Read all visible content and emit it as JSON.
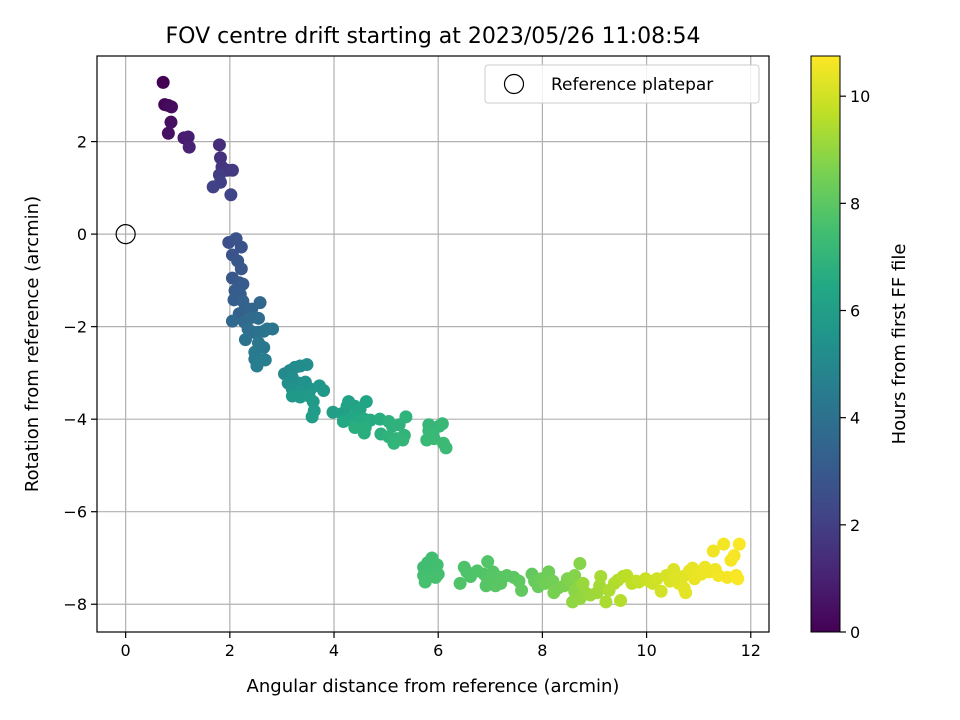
{
  "chart_data": {
    "type": "scatter",
    "title": "FOV centre drift starting at 2023/05/26 11:08:54",
    "xlabel": "Angular distance from reference (arcmin)",
    "ylabel": "Rotation from reference (arcmin)",
    "xlim": [
      -0.55,
      12.35
    ],
    "ylim": [
      -8.6,
      3.85
    ],
    "xticks": [
      0,
      2,
      4,
      6,
      8,
      10,
      12
    ],
    "yticks": [
      -8,
      -6,
      -4,
      -2,
      0,
      2
    ],
    "x_tick_labels": [
      "0",
      "2",
      "4",
      "6",
      "8",
      "10",
      "12"
    ],
    "y_tick_labels": [
      "−8",
      "−6",
      "−4",
      "−2",
      "0",
      "2"
    ],
    "grid": true,
    "legend": {
      "placement": "top-right",
      "entries": [
        {
          "label": "Reference platepar",
          "marker": "open-circle"
        }
      ]
    },
    "reference_point": {
      "x": 0,
      "y": 0
    },
    "colorbar": {
      "label": "Hours from first FF file",
      "colormap": "viridis",
      "range": [
        0,
        10.75
      ],
      "ticks": [
        0,
        2,
        4,
        6,
        8,
        10
      ],
      "tick_labels": [
        "0",
        "2",
        "4",
        "6",
        "8",
        "10"
      ]
    },
    "points": [
      {
        "x": 0.72,
        "y": 3.28,
        "t": 0.0
      },
      {
        "x": 0.75,
        "y": 2.8,
        "t": 0.1
      },
      {
        "x": 0.82,
        "y": 2.78,
        "t": 0.2
      },
      {
        "x": 0.88,
        "y": 2.75,
        "t": 0.3
      },
      {
        "x": 0.87,
        "y": 2.42,
        "t": 0.4
      },
      {
        "x": 0.82,
        "y": 2.18,
        "t": 0.5
      },
      {
        "x": 1.12,
        "y": 2.08,
        "t": 0.8
      },
      {
        "x": 1.2,
        "y": 2.1,
        "t": 0.9
      },
      {
        "x": 1.22,
        "y": 1.88,
        "t": 1.0
      },
      {
        "x": 1.8,
        "y": 1.93,
        "t": 1.4
      },
      {
        "x": 1.82,
        "y": 1.65,
        "t": 1.5
      },
      {
        "x": 1.85,
        "y": 1.45,
        "t": 1.6
      },
      {
        "x": 1.95,
        "y": 1.38,
        "t": 1.7
      },
      {
        "x": 2.05,
        "y": 1.38,
        "t": 1.8
      },
      {
        "x": 1.8,
        "y": 1.28,
        "t": 1.9
      },
      {
        "x": 1.82,
        "y": 1.12,
        "t": 2.0
      },
      {
        "x": 1.68,
        "y": 1.02,
        "t": 2.1
      },
      {
        "x": 2.02,
        "y": 0.85,
        "t": 2.2
      },
      {
        "x": 1.98,
        "y": -0.18,
        "t": 2.6
      },
      {
        "x": 2.12,
        "y": -0.1,
        "t": 2.7
      },
      {
        "x": 2.22,
        "y": -0.28,
        "t": 2.75
      },
      {
        "x": 2.05,
        "y": -0.45,
        "t": 2.8
      },
      {
        "x": 2.15,
        "y": -0.58,
        "t": 2.85
      },
      {
        "x": 2.22,
        "y": -0.75,
        "t": 2.9
      },
      {
        "x": 2.05,
        "y": -0.95,
        "t": 2.95
      },
      {
        "x": 2.18,
        "y": -1.05,
        "t": 3.0
      },
      {
        "x": 2.25,
        "y": -1.08,
        "t": 3.05
      },
      {
        "x": 2.1,
        "y": -1.22,
        "t": 3.1
      },
      {
        "x": 2.2,
        "y": -1.3,
        "t": 3.15
      },
      {
        "x": 2.08,
        "y": -1.42,
        "t": 3.2
      },
      {
        "x": 2.25,
        "y": -1.45,
        "t": 3.3
      },
      {
        "x": 2.3,
        "y": -1.6,
        "t": 3.35
      },
      {
        "x": 2.18,
        "y": -1.72,
        "t": 3.4
      },
      {
        "x": 2.42,
        "y": -1.62,
        "t": 3.5
      },
      {
        "x": 2.58,
        "y": -1.48,
        "t": 3.55
      },
      {
        "x": 2.05,
        "y": -1.88,
        "t": 3.6
      },
      {
        "x": 2.28,
        "y": -1.9,
        "t": 3.65
      },
      {
        "x": 2.42,
        "y": -1.8,
        "t": 3.7
      },
      {
        "x": 2.55,
        "y": -1.82,
        "t": 3.8
      },
      {
        "x": 2.35,
        "y": -2.05,
        "t": 3.85
      },
      {
        "x": 2.45,
        "y": -2.12,
        "t": 3.9
      },
      {
        "x": 2.55,
        "y": -2.12,
        "t": 4.0
      },
      {
        "x": 2.3,
        "y": -2.28,
        "t": 4.05
      },
      {
        "x": 2.65,
        "y": -2.1,
        "t": 4.1
      },
      {
        "x": 2.72,
        "y": -2.05,
        "t": 4.15
      },
      {
        "x": 2.82,
        "y": -2.05,
        "t": 4.2
      },
      {
        "x": 2.55,
        "y": -2.35,
        "t": 4.25
      },
      {
        "x": 2.65,
        "y": -2.45,
        "t": 4.3
      },
      {
        "x": 2.48,
        "y": -2.55,
        "t": 4.35
      },
      {
        "x": 2.48,
        "y": -2.7,
        "t": 4.4
      },
      {
        "x": 2.58,
        "y": -2.72,
        "t": 4.45
      },
      {
        "x": 2.68,
        "y": -2.72,
        "t": 4.5
      },
      {
        "x": 2.52,
        "y": -2.85,
        "t": 4.55
      },
      {
        "x": 3.05,
        "y": -3.02,
        "t": 5.0
      },
      {
        "x": 3.15,
        "y": -2.95,
        "t": 5.05
      },
      {
        "x": 3.25,
        "y": -2.88,
        "t": 5.1
      },
      {
        "x": 3.35,
        "y": -2.85,
        "t": 5.15
      },
      {
        "x": 3.48,
        "y": -2.82,
        "t": 5.2
      },
      {
        "x": 3.2,
        "y": -3.1,
        "t": 5.25
      },
      {
        "x": 3.12,
        "y": -3.22,
        "t": 5.3
      },
      {
        "x": 3.32,
        "y": -3.22,
        "t": 5.35
      },
      {
        "x": 3.45,
        "y": -3.2,
        "t": 5.4
      },
      {
        "x": 3.2,
        "y": -3.35,
        "t": 5.45
      },
      {
        "x": 3.38,
        "y": -3.38,
        "t": 5.5
      },
      {
        "x": 3.55,
        "y": -3.35,
        "t": 5.55
      },
      {
        "x": 3.72,
        "y": -3.28,
        "t": 5.6
      },
      {
        "x": 3.8,
        "y": -3.38,
        "t": 5.65
      },
      {
        "x": 3.2,
        "y": -3.5,
        "t": 5.7
      },
      {
        "x": 3.35,
        "y": -3.52,
        "t": 5.75
      },
      {
        "x": 3.52,
        "y": -3.5,
        "t": 5.8
      },
      {
        "x": 3.6,
        "y": -3.62,
        "t": 5.85
      },
      {
        "x": 3.62,
        "y": -3.82,
        "t": 5.9
      },
      {
        "x": 3.58,
        "y": -3.95,
        "t": 5.95
      },
      {
        "x": 3.98,
        "y": -3.85,
        "t": 6.0
      },
      {
        "x": 4.15,
        "y": -3.88,
        "t": 6.05
      },
      {
        "x": 4.25,
        "y": -3.72,
        "t": 6.1
      },
      {
        "x": 4.28,
        "y": -3.62,
        "t": 6.15
      },
      {
        "x": 4.4,
        "y": -3.72,
        "t": 6.2
      },
      {
        "x": 4.5,
        "y": -3.78,
        "t": 6.25
      },
      {
        "x": 4.62,
        "y": -3.62,
        "t": 6.3
      },
      {
        "x": 4.32,
        "y": -3.98,
        "t": 6.35
      },
      {
        "x": 4.45,
        "y": -3.98,
        "t": 6.4
      },
      {
        "x": 4.18,
        "y": -4.05,
        "t": 6.45
      },
      {
        "x": 4.38,
        "y": -4.08,
        "t": 6.5
      },
      {
        "x": 4.58,
        "y": -4.0,
        "t": 6.55
      },
      {
        "x": 4.7,
        "y": -4.02,
        "t": 6.6
      },
      {
        "x": 4.88,
        "y": -4.0,
        "t": 6.65
      },
      {
        "x": 4.4,
        "y": -4.18,
        "t": 6.7
      },
      {
        "x": 4.6,
        "y": -4.18,
        "t": 6.72
      },
      {
        "x": 4.58,
        "y": -4.3,
        "t": 6.75
      },
      {
        "x": 4.9,
        "y": -4.32,
        "t": 6.8
      },
      {
        "x": 5.05,
        "y": -4.05,
        "t": 6.82
      },
      {
        "x": 5.12,
        "y": -4.15,
        "t": 6.85
      },
      {
        "x": 5.25,
        "y": -4.12,
        "t": 6.88
      },
      {
        "x": 5.38,
        "y": -3.95,
        "t": 6.9
      },
      {
        "x": 5.05,
        "y": -4.38,
        "t": 6.92
      },
      {
        "x": 5.2,
        "y": -4.42,
        "t": 6.95
      },
      {
        "x": 5.35,
        "y": -4.35,
        "t": 6.97
      },
      {
        "x": 5.15,
        "y": -4.52,
        "t": 7.0
      },
      {
        "x": 5.32,
        "y": -4.45,
        "t": 7.02
      },
      {
        "x": 5.82,
        "y": -4.12,
        "t": 7.1
      },
      {
        "x": 6.02,
        "y": -4.15,
        "t": 7.12
      },
      {
        "x": 6.08,
        "y": -4.1,
        "t": 7.14
      },
      {
        "x": 5.82,
        "y": -4.25,
        "t": 7.16
      },
      {
        "x": 5.9,
        "y": -4.32,
        "t": 7.18
      },
      {
        "x": 5.78,
        "y": -4.45,
        "t": 7.2
      },
      {
        "x": 5.92,
        "y": -4.42,
        "t": 7.22
      },
      {
        "x": 6.1,
        "y": -4.52,
        "t": 7.24
      },
      {
        "x": 6.15,
        "y": -4.62,
        "t": 7.26
      },
      {
        "x": 5.72,
        "y": -7.2,
        "t": 7.4
      },
      {
        "x": 5.88,
        "y": -7.0,
        "t": 7.42
      },
      {
        "x": 5.8,
        "y": -7.1,
        "t": 7.44
      },
      {
        "x": 5.98,
        "y": -7.15,
        "t": 7.46
      },
      {
        "x": 5.85,
        "y": -7.3,
        "t": 7.48
      },
      {
        "x": 6.0,
        "y": -7.35,
        "t": 7.5
      },
      {
        "x": 5.72,
        "y": -7.38,
        "t": 7.52
      },
      {
        "x": 5.75,
        "y": -7.52,
        "t": 7.54
      },
      {
        "x": 5.95,
        "y": -7.42,
        "t": 7.56
      },
      {
        "x": 6.5,
        "y": -7.2,
        "t": 7.7
      },
      {
        "x": 6.55,
        "y": -7.3,
        "t": 7.72
      },
      {
        "x": 6.62,
        "y": -7.4,
        "t": 7.74
      },
      {
        "x": 6.42,
        "y": -7.55,
        "t": 7.76
      },
      {
        "x": 6.75,
        "y": -7.28,
        "t": 7.78
      },
      {
        "x": 6.88,
        "y": -7.35,
        "t": 7.8
      },
      {
        "x": 6.95,
        "y": -7.08,
        "t": 7.82
      },
      {
        "x": 7.05,
        "y": -7.3,
        "t": 7.84
      },
      {
        "x": 6.95,
        "y": -7.5,
        "t": 7.86
      },
      {
        "x": 6.92,
        "y": -7.6,
        "t": 7.88
      },
      {
        "x": 7.1,
        "y": -7.38,
        "t": 7.9
      },
      {
        "x": 7.22,
        "y": -7.42,
        "t": 7.92
      },
      {
        "x": 7.1,
        "y": -7.6,
        "t": 7.94
      },
      {
        "x": 7.2,
        "y": -7.55,
        "t": 7.96
      },
      {
        "x": 7.32,
        "y": -7.38,
        "t": 7.98
      },
      {
        "x": 7.45,
        "y": -7.42,
        "t": 8.0
      },
      {
        "x": 7.55,
        "y": -7.5,
        "t": 8.05
      },
      {
        "x": 7.6,
        "y": -7.7,
        "t": 8.1
      },
      {
        "x": 7.8,
        "y": -7.35,
        "t": 8.15
      },
      {
        "x": 7.85,
        "y": -7.5,
        "t": 8.2
      },
      {
        "x": 7.92,
        "y": -7.62,
        "t": 8.25
      },
      {
        "x": 7.98,
        "y": -7.45,
        "t": 8.3
      },
      {
        "x": 8.12,
        "y": -7.3,
        "t": 8.35
      },
      {
        "x": 8.05,
        "y": -7.55,
        "t": 8.4
      },
      {
        "x": 8.2,
        "y": -7.5,
        "t": 8.45
      },
      {
        "x": 8.3,
        "y": -7.65,
        "t": 8.5
      },
      {
        "x": 8.22,
        "y": -7.75,
        "t": 8.55
      },
      {
        "x": 8.42,
        "y": -7.6,
        "t": 8.6
      },
      {
        "x": 8.48,
        "y": -7.45,
        "t": 8.65
      },
      {
        "x": 8.55,
        "y": -7.52,
        "t": 8.7
      },
      {
        "x": 8.62,
        "y": -7.38,
        "t": 8.75
      },
      {
        "x": 8.72,
        "y": -7.12,
        "t": 8.8
      },
      {
        "x": 8.62,
        "y": -7.72,
        "t": 8.85
      },
      {
        "x": 8.7,
        "y": -7.62,
        "t": 8.9
      },
      {
        "x": 8.58,
        "y": -7.95,
        "t": 8.95
      },
      {
        "x": 8.72,
        "y": -7.88,
        "t": 9.0
      },
      {
        "x": 8.82,
        "y": -7.75,
        "t": 9.05
      },
      {
        "x": 8.78,
        "y": -7.55,
        "t": 9.1
      },
      {
        "x": 8.92,
        "y": -7.8,
        "t": 9.15
      },
      {
        "x": 9.05,
        "y": -7.75,
        "t": 9.2
      },
      {
        "x": 9.1,
        "y": -7.6,
        "t": 9.25
      },
      {
        "x": 9.12,
        "y": -7.4,
        "t": 9.3
      },
      {
        "x": 9.22,
        "y": -7.95,
        "t": 9.35
      },
      {
        "x": 9.28,
        "y": -7.7,
        "t": 9.4
      },
      {
        "x": 9.38,
        "y": -7.55,
        "t": 9.45
      },
      {
        "x": 9.45,
        "y": -7.48,
        "t": 9.5
      },
      {
        "x": 9.5,
        "y": -7.92,
        "t": 9.55
      },
      {
        "x": 9.55,
        "y": -7.4,
        "t": 9.6
      },
      {
        "x": 9.62,
        "y": -7.38,
        "t": 9.65
      },
      {
        "x": 9.72,
        "y": -7.55,
        "t": 9.7
      },
      {
        "x": 9.8,
        "y": -7.5,
        "t": 9.75
      },
      {
        "x": 9.85,
        "y": -7.52,
        "t": 9.8
      },
      {
        "x": 9.98,
        "y": -7.45,
        "t": 9.85
      },
      {
        "x": 10.05,
        "y": -7.5,
        "t": 9.9
      },
      {
        "x": 10.12,
        "y": -7.55,
        "t": 9.95
      },
      {
        "x": 10.2,
        "y": -7.45,
        "t": 10.0
      },
      {
        "x": 10.28,
        "y": -7.72,
        "t": 10.05
      },
      {
        "x": 10.38,
        "y": -7.38,
        "t": 10.1
      },
      {
        "x": 10.45,
        "y": -7.5,
        "t": 10.15
      },
      {
        "x": 10.52,
        "y": -7.25,
        "t": 10.2
      },
      {
        "x": 10.55,
        "y": -7.42,
        "t": 10.22
      },
      {
        "x": 10.62,
        "y": -7.55,
        "t": 10.25
      },
      {
        "x": 10.7,
        "y": -7.4,
        "t": 10.28
      },
      {
        "x": 10.72,
        "y": -7.65,
        "t": 10.3
      },
      {
        "x": 10.75,
        "y": -7.75,
        "t": 10.32
      },
      {
        "x": 10.82,
        "y": -7.28,
        "t": 10.35
      },
      {
        "x": 10.88,
        "y": -7.22,
        "t": 10.38
      },
      {
        "x": 10.92,
        "y": -7.45,
        "t": 10.4
      },
      {
        "x": 10.95,
        "y": -7.38,
        "t": 10.42
      },
      {
        "x": 11.05,
        "y": -7.35,
        "t": 10.45
      },
      {
        "x": 11.12,
        "y": -7.2,
        "t": 10.48
      },
      {
        "x": 11.2,
        "y": -7.3,
        "t": 10.5
      },
      {
        "x": 11.28,
        "y": -6.85,
        "t": 10.52
      },
      {
        "x": 11.32,
        "y": -7.25,
        "t": 10.54
      },
      {
        "x": 11.38,
        "y": -7.38,
        "t": 10.56
      },
      {
        "x": 11.48,
        "y": -6.7,
        "t": 10.58
      },
      {
        "x": 11.55,
        "y": -7.42,
        "t": 10.6
      },
      {
        "x": 11.62,
        "y": -7.05,
        "t": 10.62
      },
      {
        "x": 11.68,
        "y": -6.95,
        "t": 10.64
      },
      {
        "x": 11.72,
        "y": -7.38,
        "t": 10.66
      },
      {
        "x": 11.75,
        "y": -7.45,
        "t": 10.68
      },
      {
        "x": 11.78,
        "y": -6.7,
        "t": 10.7
      }
    ]
  }
}
